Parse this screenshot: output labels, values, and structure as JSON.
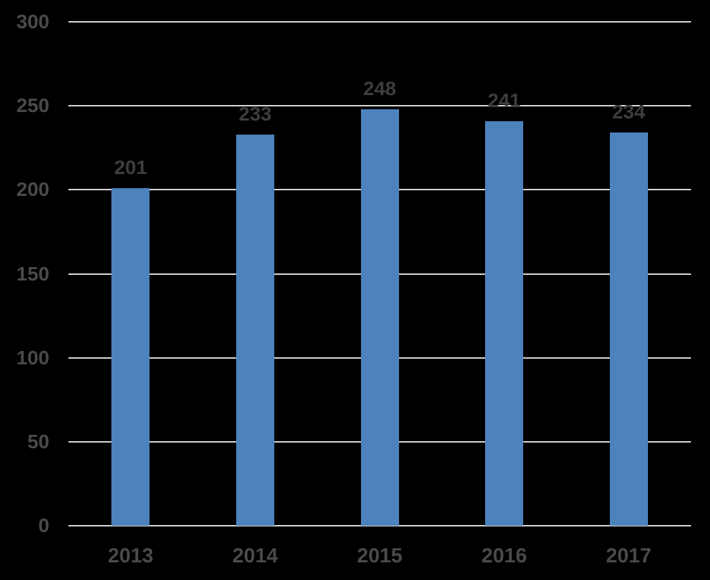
{
  "chart_data": {
    "type": "bar",
    "title": "",
    "categories": [
      "2013",
      "2014",
      "2015",
      "2016",
      "2017"
    ],
    "values": [
      201,
      233,
      248,
      241,
      234
    ],
    "series": [
      {
        "name": "values",
        "values": [
          201,
          233,
          248,
          241,
          234
        ]
      }
    ],
    "data_labels": [
      "201",
      "233",
      "248",
      "241",
      "234"
    ],
    "xlabel": "",
    "ylabel": "",
    "ylim": [
      0,
      300
    ],
    "ytick_interval": 50,
    "ytick_labels": [
      "0",
      "50",
      "100",
      "150",
      "200",
      "250",
      "300"
    ],
    "grid": true,
    "legend": false,
    "colors": {
      "bar": "#4e82bd",
      "gridline": "#d9d9d9",
      "tick_label": "#4a4a4a",
      "data_label": "#3d3d3d",
      "background": "#000000"
    }
  }
}
